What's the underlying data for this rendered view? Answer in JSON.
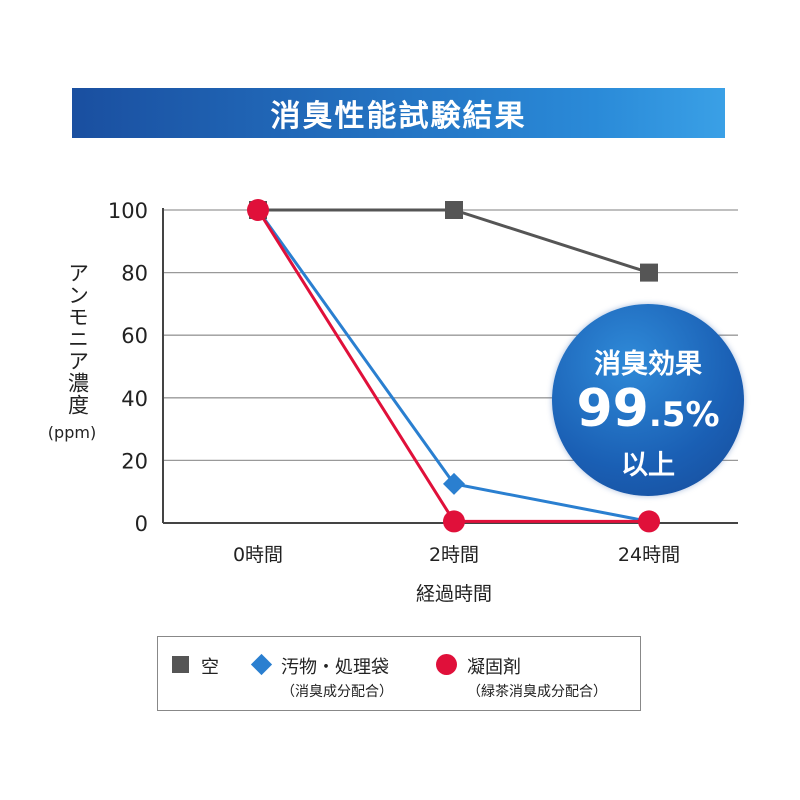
{
  "title": "消臭性能試験結果",
  "chart_data": {
    "type": "line",
    "title": "消臭性能試験結果",
    "xlabel": "経過時間",
    "ylabel": "アンモニア濃度",
    "yunit": "(ppm)",
    "categories": [
      "0時間",
      "2時間",
      "24時間"
    ],
    "ylim": [
      0,
      100
    ],
    "yticks": [
      0,
      20,
      40,
      60,
      80,
      100
    ],
    "grid": true,
    "legend_placement": "bottom",
    "series": [
      {
        "name": "空",
        "sub": "",
        "marker": "square",
        "color": "#555555",
        "values": [
          100,
          100,
          80
        ]
      },
      {
        "name": "汚物・処理袋",
        "sub": "（消臭成分配合）",
        "marker": "diamond",
        "color": "#2a7fd0",
        "values": [
          100,
          12.5,
          0.5
        ]
      },
      {
        "name": "凝固剤",
        "sub": "（緑茶消臭成分配合）",
        "marker": "circle",
        "color": "#e0103a",
        "values": [
          100,
          0.5,
          0.5
        ]
      }
    ]
  },
  "badge": {
    "line1": "消臭効果",
    "value": "99",
    "decimal": ".5",
    "percent": "%",
    "line3": "以上"
  }
}
